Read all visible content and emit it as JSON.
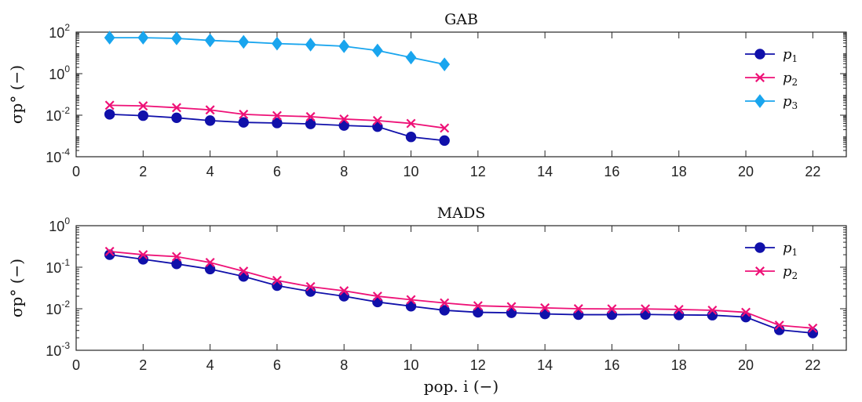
{
  "figure": {
    "xlabel": "pop. i (−)"
  },
  "chart_data": [
    {
      "type": "line",
      "title": "GAB",
      "ylabel": "σp° (−)",
      "yscale": "log",
      "xlim": [
        0,
        23
      ],
      "ylim": [
        0.0001,
        100
      ],
      "xticks": [
        0,
        2,
        4,
        6,
        8,
        10,
        12,
        14,
        16,
        18,
        20,
        22
      ],
      "yticks": [
        {
          "base": "10",
          "exp": "-4",
          "value": 0.0001
        },
        {
          "base": "10",
          "exp": "-2",
          "value": 0.01
        },
        {
          "base": "10",
          "exp": "0",
          "value": 1
        },
        {
          "base": "10",
          "exp": "2",
          "value": 100
        }
      ],
      "legend_position": "top-right",
      "series": [
        {
          "name": "p",
          "sub": "1",
          "color": "#1010aa",
          "marker": "circle",
          "x": [
            1,
            2,
            3,
            4,
            5,
            6,
            7,
            8,
            9,
            10,
            11
          ],
          "y": [
            0.011,
            0.0095,
            0.0075,
            0.0055,
            0.0045,
            0.0042,
            0.0038,
            0.0032,
            0.0028,
            0.0009,
            0.0006
          ]
        },
        {
          "name": "p",
          "sub": "2",
          "color": "#ee1177",
          "marker": "x",
          "x": [
            1,
            2,
            3,
            4,
            5,
            6,
            7,
            8,
            9,
            10,
            11
          ],
          "y": [
            0.03,
            0.028,
            0.023,
            0.018,
            0.011,
            0.0095,
            0.0085,
            0.0065,
            0.0055,
            0.004,
            0.0024
          ]
        },
        {
          "name": "p",
          "sub": "3",
          "color": "#19a5ee",
          "marker": "diamond",
          "x": [
            1,
            2,
            3,
            4,
            5,
            6,
            7,
            8,
            9,
            10,
            11
          ],
          "y": [
            54,
            54,
            50,
            40,
            34,
            28,
            25,
            21,
            13,
            6,
            2.8
          ]
        }
      ]
    },
    {
      "type": "line",
      "title": "MADS",
      "ylabel": "σp° (−)",
      "yscale": "log",
      "xlim": [
        0,
        23
      ],
      "ylim": [
        0.001,
        1
      ],
      "xticks": [
        0,
        2,
        4,
        6,
        8,
        10,
        12,
        14,
        16,
        18,
        20,
        22
      ],
      "yticks": [
        {
          "base": "10",
          "exp": "-3",
          "value": 0.001
        },
        {
          "base": "10",
          "exp": "-2",
          "value": 0.01
        },
        {
          "base": "10",
          "exp": "-1",
          "value": 0.1
        },
        {
          "base": "10",
          "exp": "0",
          "value": 1
        }
      ],
      "legend_position": "top-right",
      "series": [
        {
          "name": "p",
          "sub": "1",
          "color": "#1010aa",
          "marker": "circle",
          "x": [
            1,
            2,
            3,
            4,
            5,
            6,
            7,
            8,
            9,
            10,
            11,
            12,
            13,
            14,
            15,
            16,
            17,
            18,
            19,
            20,
            21,
            22
          ],
          "y": [
            0.2,
            0.155,
            0.12,
            0.09,
            0.06,
            0.036,
            0.026,
            0.02,
            0.0145,
            0.0115,
            0.0092,
            0.0082,
            0.008,
            0.0075,
            0.0072,
            0.0072,
            0.0073,
            0.0071,
            0.007,
            0.0063,
            0.0031,
            0.0026
          ]
        },
        {
          "name": "p",
          "sub": "2",
          "color": "#ee1177",
          "marker": "x",
          "x": [
            1,
            2,
            3,
            4,
            5,
            6,
            7,
            8,
            9,
            10,
            11,
            12,
            13,
            14,
            15,
            16,
            17,
            18,
            19,
            20,
            21,
            22
          ],
          "y": [
            0.24,
            0.2,
            0.18,
            0.13,
            0.08,
            0.048,
            0.034,
            0.027,
            0.02,
            0.0165,
            0.0138,
            0.0118,
            0.0112,
            0.0105,
            0.01,
            0.0099,
            0.0099,
            0.0096,
            0.0092,
            0.0082,
            0.004,
            0.0034
          ]
        }
      ]
    }
  ]
}
